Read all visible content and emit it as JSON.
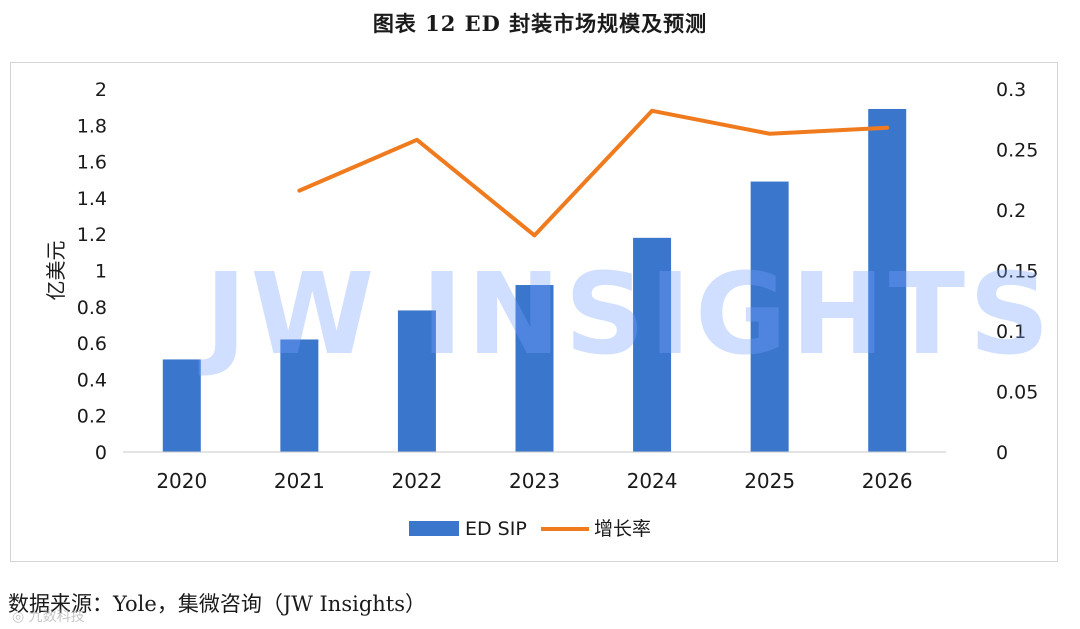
{
  "title": "图表 12 ED  封装市场规模及预测",
  "source": "数据来源：Yole，集微咨询（JW Insights）",
  "watermark": "JW INSIGHTS",
  "corner_mark": "◎ 九数科技",
  "colors": {
    "bar": "#3a77cc",
    "line": "#f07b1e",
    "axis": "#c8c8c8"
  },
  "chart_data": {
    "type": "bar",
    "categories": [
      "2020",
      "2021",
      "2022",
      "2023",
      "2024",
      "2025",
      "2026"
    ],
    "ylabel": "亿美元",
    "ylim": [
      0,
      2
    ],
    "y_ticks": [
      0,
      0.2,
      0.4,
      0.6,
      0.8,
      1,
      1.2,
      1.4,
      1.6,
      1.8,
      2
    ],
    "y2lim": [
      0,
      0.3
    ],
    "y2_ticks": [
      0,
      0.05,
      0.1,
      0.15,
      0.2,
      0.25,
      0.3
    ],
    "legend_position": "bottom",
    "grid": false,
    "series": [
      {
        "name": "ED SIP",
        "type": "bar",
        "axis": "left",
        "values": [
          0.51,
          0.62,
          0.78,
          0.92,
          1.18,
          1.49,
          1.89
        ]
      },
      {
        "name": "增长率",
        "type": "line",
        "axis": "right",
        "values": [
          null,
          0.216,
          0.258,
          0.179,
          0.282,
          0.263,
          0.268
        ]
      }
    ]
  }
}
